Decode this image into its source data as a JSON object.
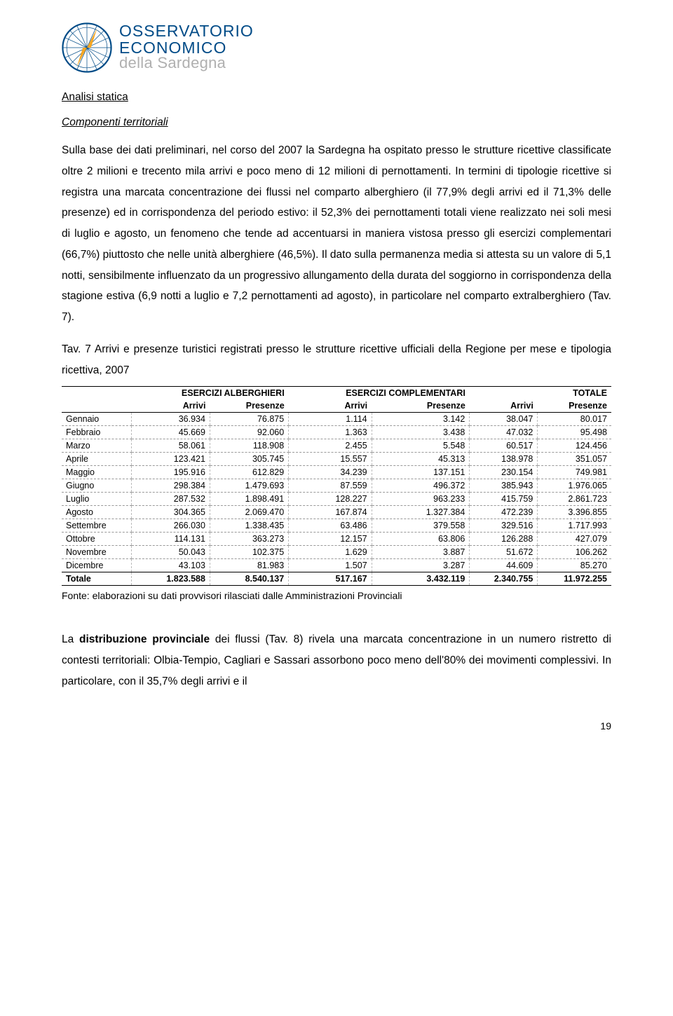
{
  "logo": {
    "line1": "OSSERVATORIO",
    "line2": "ECONOMICO",
    "line3": "della Sardegna",
    "primary_color": "#004b87",
    "secondary_color": "#b0b0b0"
  },
  "headings": {
    "h1": "Analisi statica",
    "h2": "Componenti territoriali"
  },
  "paragraphs": {
    "p1": "Sulla base dei dati preliminari, nel corso del 2007 la Sardegna ha ospitato presso le strutture ricettive classificate oltre 2 milioni e trecento mila arrivi e poco meno di 12 milioni di pernottamenti. In termini di tipologie ricettive si registra una marcata concentrazione dei flussi nel comparto alberghiero (il 77,9% degli arrivi ed il 71,3% delle presenze) ed in corrispondenza del periodo estivo: il 52,3% dei pernottamenti totali viene realizzato nei soli mesi di luglio e agosto, un fenomeno che tende ad accentuarsi in maniera vistosa presso gli esercizi complementari (66,7%) piuttosto che nelle unità alberghiere (46,5%). Il dato sulla permanenza media si attesta su un valore di 5,1 notti, sensibilmente influenzato da un progressivo allungamento della durata del soggiorno in corrispondenza della stagione estiva (6,9 notti a luglio e 7,2 pernottamenti ad agosto), in particolare nel comparto extralberghiero (Tav. 7).",
    "table_caption": "Tav. 7 Arrivi e presenze turistici registrati presso le strutture ricettive ufficiali della Regione per mese e tipologia ricettiva, 2007",
    "source": "Fonte: elaborazioni su dati provvisori rilasciati dalle Amministrazioni Provinciali",
    "p2_prefix": "La ",
    "p2_bold": "distribuzione provinciale",
    "p2_rest": " dei flussi (Tav. 8) rivela una marcata concentrazione in un numero ristretto di contesti territoriali: Olbia-Tempio, Cagliari e Sassari assorbono poco meno dell'80% dei movimenti complessivi. In particolare, con il 35,7% degli arrivi e il"
  },
  "table": {
    "group_headers": [
      "ESERCIZI ALBERGHIERI",
      "ESERCIZI COMPLEMENTARI",
      "TOTALE"
    ],
    "sub_headers": [
      "Arrivi",
      "Presenze",
      "Arrivi",
      "Presenze",
      "Arrivi",
      "Presenze"
    ],
    "rows": [
      {
        "label": "Gennaio",
        "cells": [
          "36.934",
          "76.875",
          "1.114",
          "3.142",
          "38.047",
          "80.017"
        ]
      },
      {
        "label": "Febbraio",
        "cells": [
          "45.669",
          "92.060",
          "1.363",
          "3.438",
          "47.032",
          "95.498"
        ]
      },
      {
        "label": "Marzo",
        "cells": [
          "58.061",
          "118.908",
          "2.455",
          "5.548",
          "60.517",
          "124.456"
        ]
      },
      {
        "label": "Aprile",
        "cells": [
          "123.421",
          "305.745",
          "15.557",
          "45.313",
          "138.978",
          "351.057"
        ]
      },
      {
        "label": "Maggio",
        "cells": [
          "195.916",
          "612.829",
          "34.239",
          "137.151",
          "230.154",
          "749.981"
        ]
      },
      {
        "label": "Giugno",
        "cells": [
          "298.384",
          "1.479.693",
          "87.559",
          "496.372",
          "385.943",
          "1.976.065"
        ]
      },
      {
        "label": "Luglio",
        "cells": [
          "287.532",
          "1.898.491",
          "128.227",
          "963.233",
          "415.759",
          "2.861.723"
        ]
      },
      {
        "label": "Agosto",
        "cells": [
          "304.365",
          "2.069.470",
          "167.874",
          "1.327.384",
          "472.239",
          "3.396.855"
        ]
      },
      {
        "label": "Settembre",
        "cells": [
          "266.030",
          "1.338.435",
          "63.486",
          "379.558",
          "329.516",
          "1.717.993"
        ]
      },
      {
        "label": "Ottobre",
        "cells": [
          "114.131",
          "363.273",
          "12.157",
          "63.806",
          "126.288",
          "427.079"
        ]
      },
      {
        "label": "Novembre",
        "cells": [
          "50.043",
          "102.375",
          "1.629",
          "3.887",
          "51.672",
          "106.262"
        ]
      },
      {
        "label": "Dicembre",
        "cells": [
          "43.103",
          "81.983",
          "1.507",
          "3.287",
          "44.609",
          "85.270"
        ]
      }
    ],
    "total": {
      "label": "Totale",
      "cells": [
        "1.823.588",
        "8.540.137",
        "517.167",
        "3.432.119",
        "2.340.755",
        "11.972.255"
      ]
    },
    "styling": {
      "font_size_pt": 9,
      "border_color": "#000000",
      "dash_color": "#999999",
      "header_weight": "bold"
    }
  },
  "page_number": "19",
  "styling": {
    "body_font_size_pt": 12,
    "line_height": 1.92,
    "text_align": "justify",
    "background_color": "#ffffff",
    "text_color": "#000000"
  }
}
